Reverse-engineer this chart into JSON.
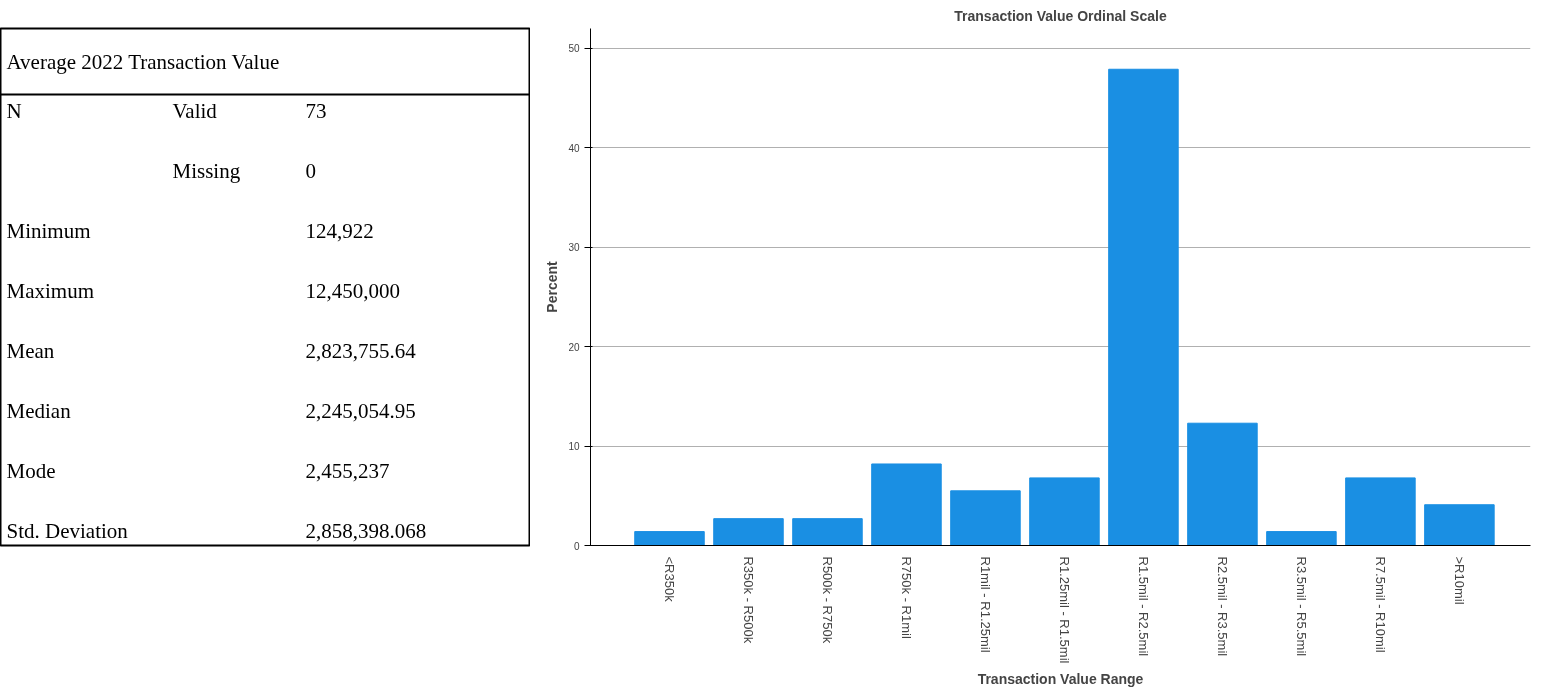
{
  "chart_data": [
    {
      "type": "other",
      "title": "Average 2022 Transaction Value",
      "y_categories": [
        "N",
        null,
        "Minimum",
        "Maximum",
        "Mean",
        "Median",
        "Mode",
        "Std. Deviation"
      ],
      "annotations": [
        "Valid",
        "Missing"
      ],
      "y2_categories": [
        "73",
        "0",
        "124,922",
        "12,450,000",
        "2,823,755.64",
        "2,245,054.95",
        "2,455,237",
        "2,858,398.068"
      ]
    },
    {
      "type": "bar",
      "title": "Transaction Value Ordinal Scale",
      "xlabel": "Transaction Value Range",
      "ylabel": "Percent",
      "categories": [
        "<R350k",
        "R350k - R500k",
        "R500k - R750k",
        "R750k - R1mil",
        "R1mil - R1.25mil",
        "R1.25mil - R1.5mil",
        "R1.5mil - R2.5mil",
        "R2.5mil - R3.5mil",
        "R3.5mil - R5.5mil",
        "R7.5mil - R10mil",
        ">R10mil"
      ],
      "values": [
        1.4,
        2.7,
        2.7,
        8.2,
        5.5,
        6.8,
        47.9,
        12.3,
        1.4,
        6.8,
        4.1
      ],
      "color": "#1a8fe3",
      "ylim": [
        0,
        52
      ],
      "yticks": [
        0,
        10,
        20,
        30,
        40,
        50
      ],
      "grid": "y"
    }
  ]
}
